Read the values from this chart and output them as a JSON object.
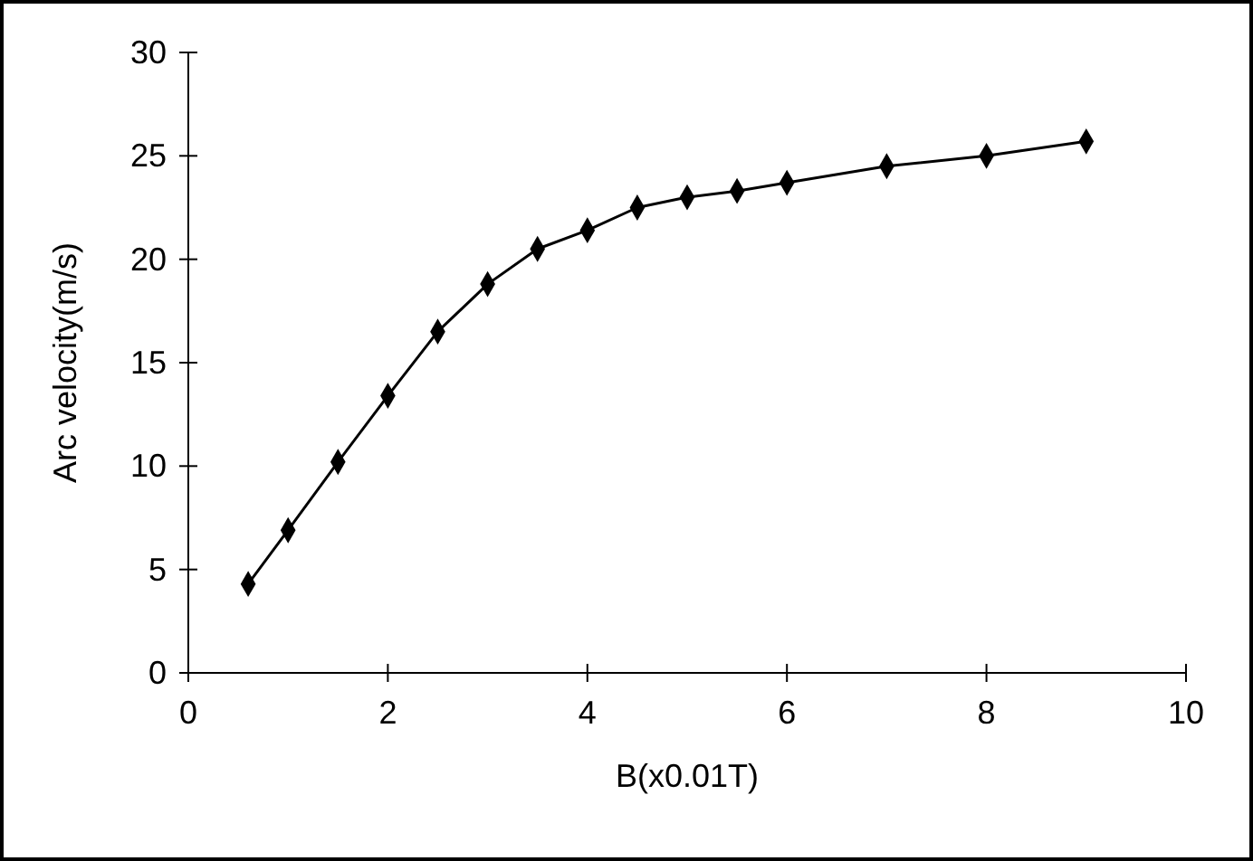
{
  "chart_data": {
    "type": "line",
    "xlabel": "B(x0.01T)",
    "ylabel": "Arc velocity(m/s)",
    "series": [
      {
        "color": "#000000",
        "x": [
          0.6,
          1,
          1.5,
          2,
          2.5,
          3,
          3.5,
          4,
          4.5,
          5,
          5.5,
          6,
          7,
          8,
          9
        ],
        "values": [
          4.3,
          6.9,
          10.2,
          13.4,
          16.5,
          18.8,
          20.5,
          21.4,
          22.5,
          23.0,
          23.3,
          23.7,
          24.5,
          25.0,
          25.7
        ]
      }
    ],
    "xlim": [
      0,
      10
    ],
    "xticks": [
      0,
      2,
      4,
      6,
      8,
      10
    ],
    "ylim": [
      0,
      30
    ],
    "yticks": [
      0,
      5,
      10,
      15,
      20,
      25,
      30
    ],
    "grid": false,
    "marker": "diamond",
    "line_style": "solid"
  }
}
